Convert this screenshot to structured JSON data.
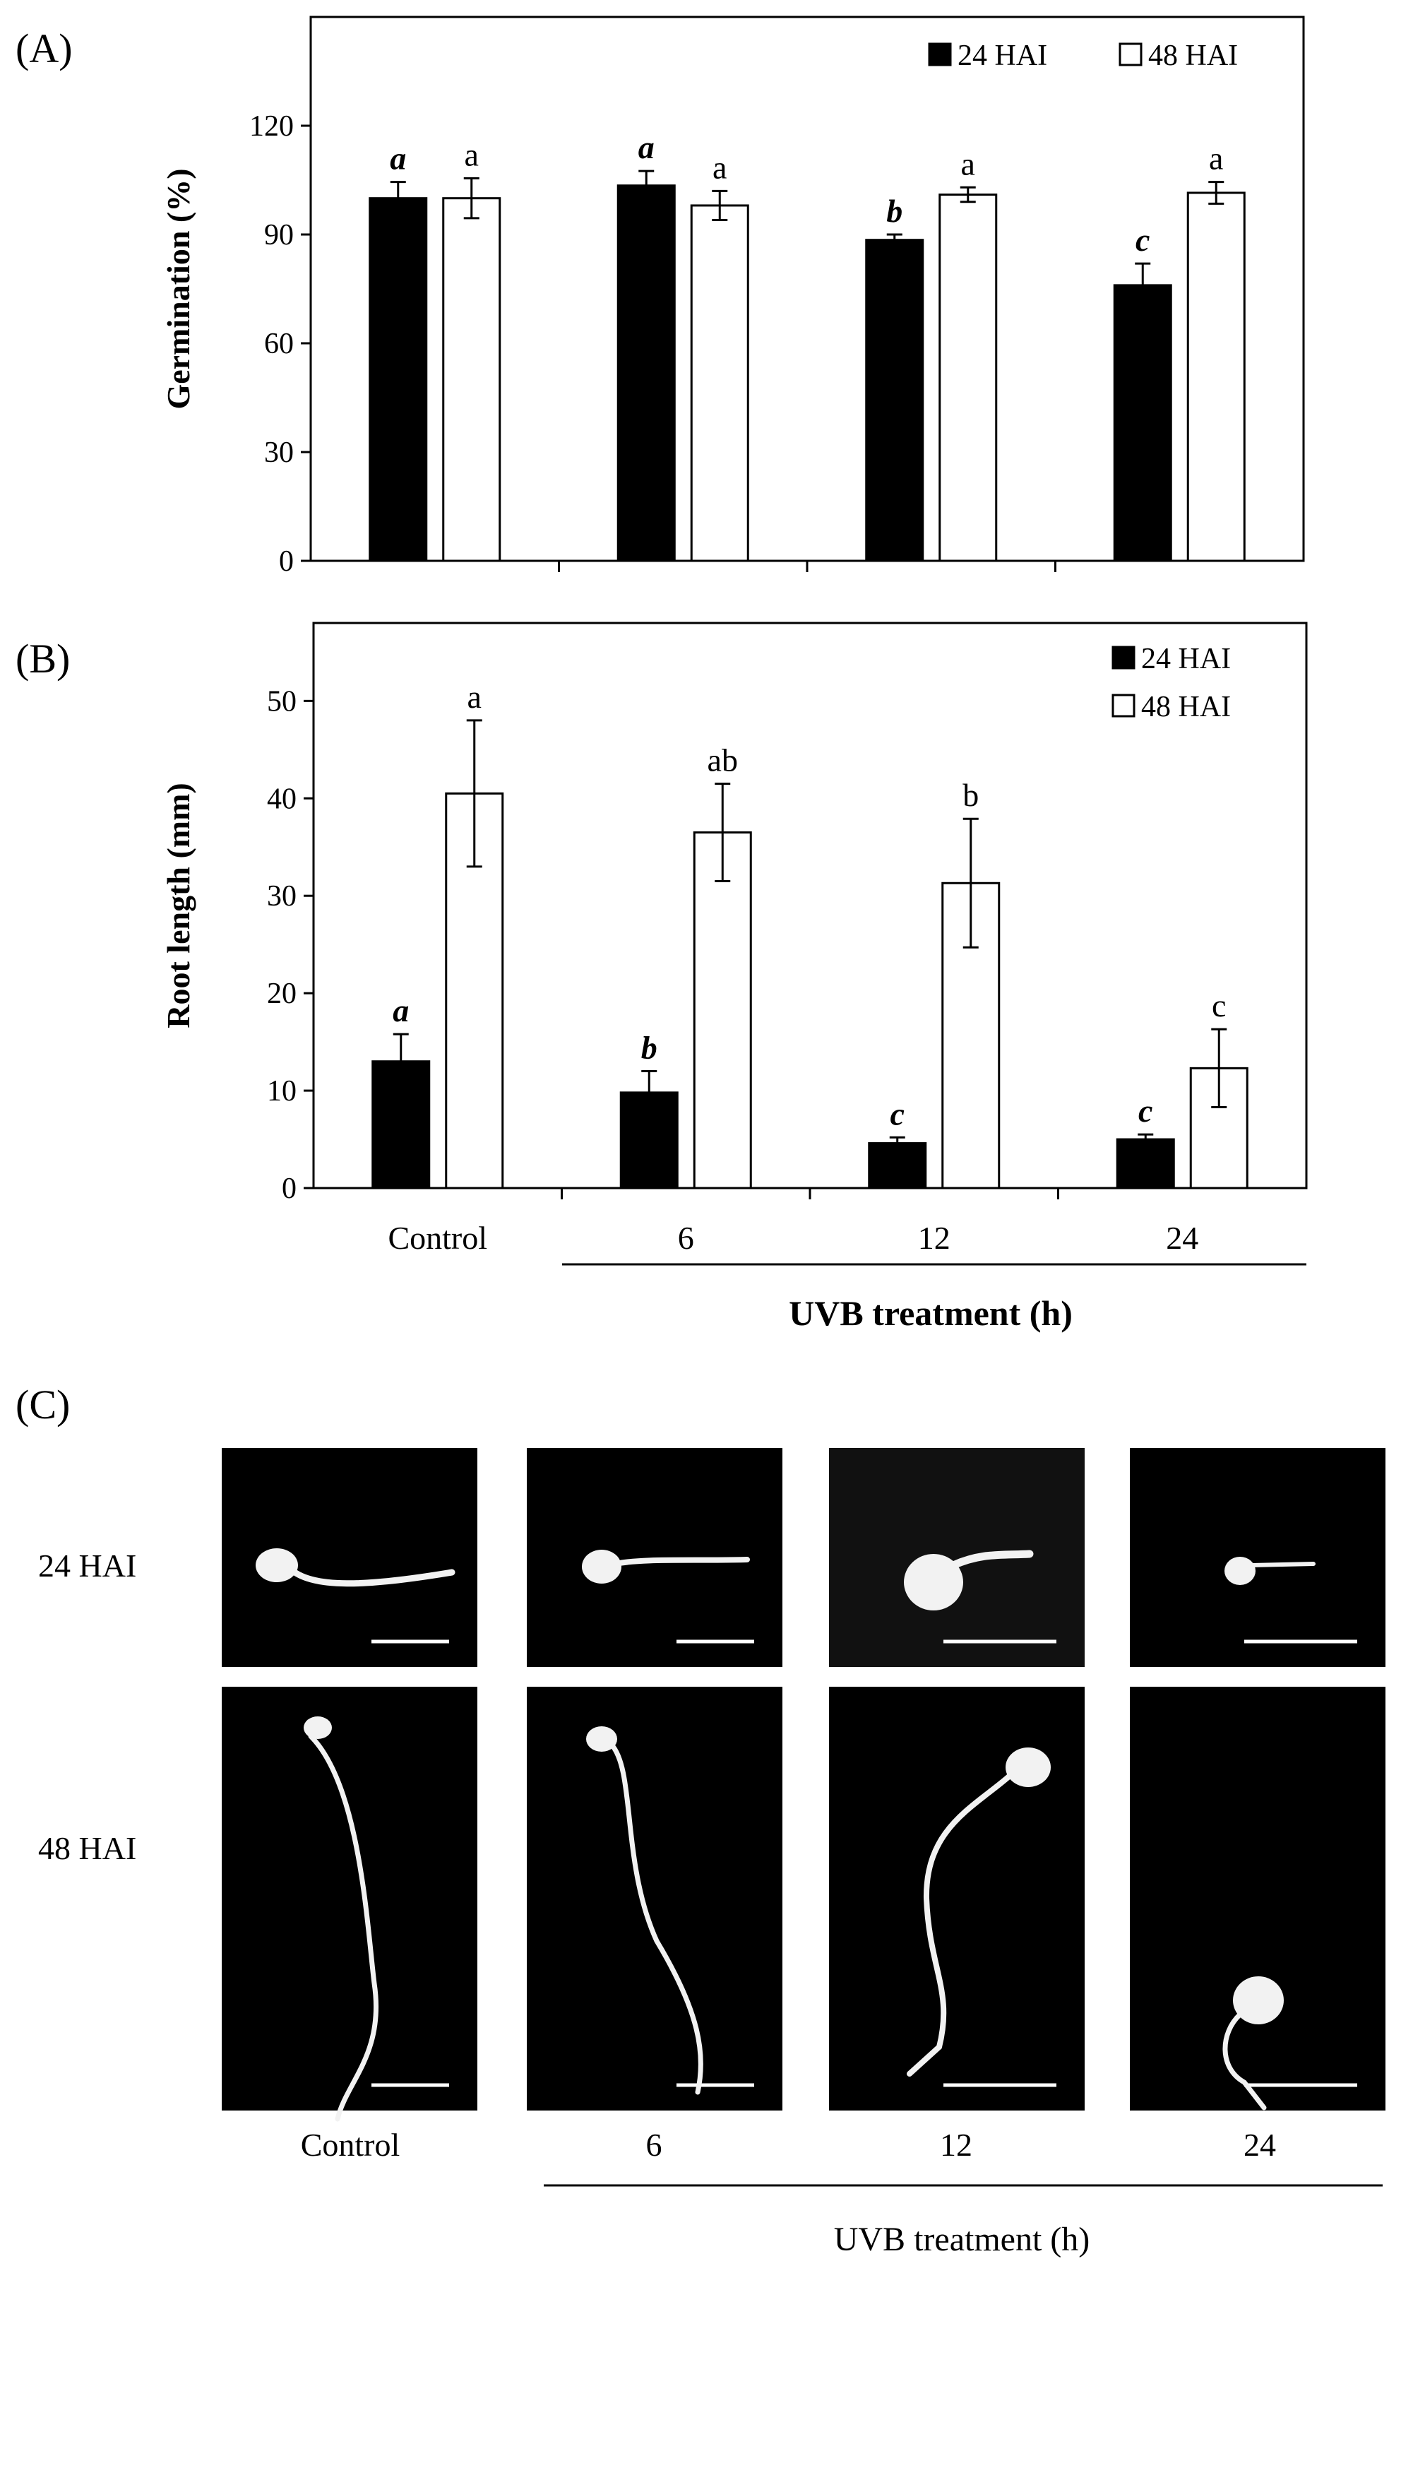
{
  "panel_labels": {
    "a": "(A)",
    "b": "(B)",
    "c": "(C)"
  },
  "colors": {
    "bar_24": "#000000",
    "bar_48": "#ffffff",
    "axis": "#000000",
    "photo_bg": "#000000",
    "photo_bg_alt": "#111111",
    "seedling": "#f2f2f2"
  },
  "chart_data": [
    {
      "type": "bar",
      "panel": "(A)",
      "title": "",
      "xlabel": "",
      "ylabel": "Germination (%)",
      "ylim": [
        0,
        150
      ],
      "yticks": [
        "0",
        "30",
        "60",
        "90",
        "120"
      ],
      "categories": [
        "Control",
        "6",
        "12",
        "24"
      ],
      "legend_position": "top-right",
      "grid": false,
      "series": [
        {
          "name": "24 HAI",
          "values": [
            100,
            103.5,
            88.5,
            76
          ],
          "errors": [
            4.5,
            4,
            1.5,
            6
          ],
          "letters": [
            "a",
            "a",
            "b",
            "c"
          ],
          "letter_style": "bold-italic"
        },
        {
          "name": "48 HAI",
          "values": [
            100,
            98,
            101,
            101.5
          ],
          "errors": [
            5.5,
            4,
            2,
            3
          ],
          "letters": [
            "a",
            "a",
            "a",
            "a"
          ],
          "letter_style": "normal"
        }
      ]
    },
    {
      "type": "bar",
      "panel": "(B)",
      "title": "",
      "xlabel": "UVB treatment (h)",
      "ylabel": "Root length (mm)",
      "ylim": [
        0,
        58
      ],
      "yticks": [
        "0",
        "10",
        "20",
        "30",
        "40",
        "50"
      ],
      "categories": [
        "Control",
        "6",
        "12",
        "24"
      ],
      "legend_position": "top-right",
      "grid": false,
      "series": [
        {
          "name": "24 HAI",
          "values": [
            13,
            9.8,
            4.6,
            5
          ],
          "errors": [
            2.8,
            2.2,
            0.6,
            0.5
          ],
          "letters": [
            "a",
            "b",
            "c",
            "c"
          ],
          "letter_style": "bold-italic"
        },
        {
          "name": "48 HAI",
          "values": [
            40.5,
            36.5,
            31.3,
            12.3
          ],
          "errors": [
            7.5,
            5,
            6.6,
            4
          ],
          "letters": [
            "a",
            "ab",
            "b",
            "c"
          ],
          "letter_style": "normal"
        }
      ]
    }
  ],
  "photos": {
    "row_labels": [
      "24 HAI",
      "48 HAI"
    ],
    "column_labels": [
      "Control",
      "6",
      "12",
      "24"
    ],
    "xlabel": "UVB treatment (h)"
  }
}
